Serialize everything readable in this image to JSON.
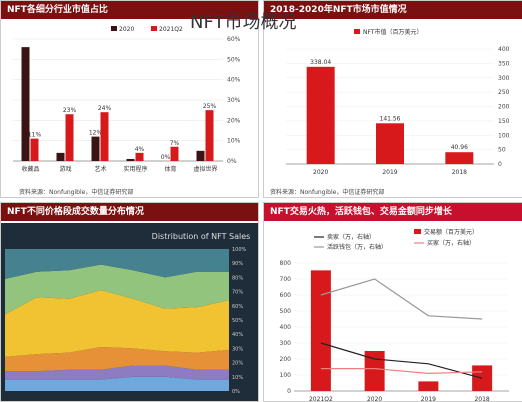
{
  "page_title": "NFT市场概况",
  "panels": {
    "tl": {
      "header": "NFT各细分行业市值占比",
      "source": "资料来源：Nonfungible，中信证券研究部"
    },
    "tr": {
      "header": "2018-2020年NFT市场市值情况",
      "source": "资料来源：Nonfungible，中信证券研究部"
    },
    "bl": {
      "header": "NFT不同价格段成交数量分布情况"
    },
    "br": {
      "header": "NFT交易火热，活跃钱包、交易金额同步增长"
    }
  },
  "colors": {
    "dark": "#3a1414",
    "red": "#d7191c",
    "header_red": "#c8102e",
    "header_dark": "#7a1010"
  },
  "chart_data": [
    {
      "type": "bar",
      "title": "",
      "categories": [
        "收藏品",
        "游戏",
        "艺术",
        "实用程序",
        "体育",
        "虚拟世界"
      ],
      "series": [
        {
          "name": "2020",
          "values": [
            56,
            4,
            12,
            1,
            0,
            5
          ]
        },
        {
          "name": "2021Q2",
          "values": [
            11,
            23,
            24,
            4,
            7,
            25
          ]
        }
      ],
      "data_labels": {
        "2020": [
          "",
          "",
          "12%",
          "",
          "0%",
          ""
        ],
        "2021Q2": [
          "11%",
          "23%",
          "24%",
          "4%",
          "7%",
          "25%"
        ]
      },
      "ylim": [
        0,
        60
      ],
      "yticks": [
        "0%",
        "10%",
        "20%",
        "30%",
        "40%",
        "50%",
        "60%"
      ],
      "legend": "top"
    },
    {
      "type": "bar",
      "title": "",
      "categories": [
        "2020",
        "2019",
        "2018"
      ],
      "series": [
        {
          "name": "NFT市值（百万美元）",
          "values": [
            338.04,
            141.56,
            40.96
          ]
        }
      ],
      "data_labels": [
        "338.04",
        "141.56",
        "40.96"
      ],
      "ylim": [
        0,
        400
      ],
      "yticks": [
        "0",
        "50",
        "100",
        "150",
        "200",
        "250",
        "300",
        "350",
        "400"
      ],
      "ylabel": "NFT市值（百万美元）",
      "legend": "top"
    },
    {
      "type": "area",
      "title": "Distribution of NFT Sales",
      "x": [
        0,
        1,
        2,
        3,
        4,
        5,
        6,
        7
      ],
      "series": [
        {
          "name": "",
          "color": "#6fa8dc",
          "values": [
            8,
            8,
            8,
            8,
            10,
            10,
            8,
            8
          ]
        },
        {
          "name": "",
          "color": "#8e7cc3",
          "values": [
            6,
            6,
            7,
            7,
            8,
            8,
            7,
            7
          ]
        },
        {
          "name": "",
          "color": "#e69138",
          "values": [
            10,
            12,
            12,
            16,
            12,
            10,
            12,
            14
          ]
        },
        {
          "name": "",
          "color": "#f1c232",
          "values": [
            30,
            40,
            38,
            40,
            35,
            30,
            32,
            35
          ]
        },
        {
          "name": "",
          "color": "#93c47d",
          "values": [
            25,
            18,
            20,
            18,
            20,
            22,
            25,
            20
          ]
        },
        {
          "name": "",
          "color": "#45818e",
          "values": [
            21,
            16,
            15,
            11,
            15,
            20,
            16,
            16
          ]
        }
      ],
      "ylim": [
        0,
        100
      ],
      "yticks": [
        "0%",
        "10%",
        "20%",
        "30%",
        "40%",
        "50%",
        "60%",
        "70%",
        "80%",
        "90%",
        "100%"
      ],
      "legend": "right"
    },
    {
      "type": "bar",
      "title": "",
      "categories": [
        "2021Q2",
        "2020",
        "2019",
        "2018"
      ],
      "series": [
        {
          "name": "交易额（百万美元）",
          "type": "bar",
          "values": [
            754,
            250,
            60,
            160
          ]
        },
        {
          "name": "卖家（万，右轴）",
          "type": "line",
          "values": [
            300,
            200,
            170,
            80
          ]
        },
        {
          "name": "活跃钱包（万，右轴）",
          "type": "line",
          "values": [
            600,
            700,
            470,
            450
          ]
        },
        {
          "name": "买家（万，右轴）",
          "type": "line",
          "values": [
            140,
            140,
            110,
            120
          ]
        }
      ],
      "ylim": [
        0,
        800
      ],
      "yticks": [
        "0",
        "100",
        "200",
        "300",
        "400",
        "500",
        "600",
        "700",
        "800"
      ],
      "legend": "top"
    }
  ]
}
